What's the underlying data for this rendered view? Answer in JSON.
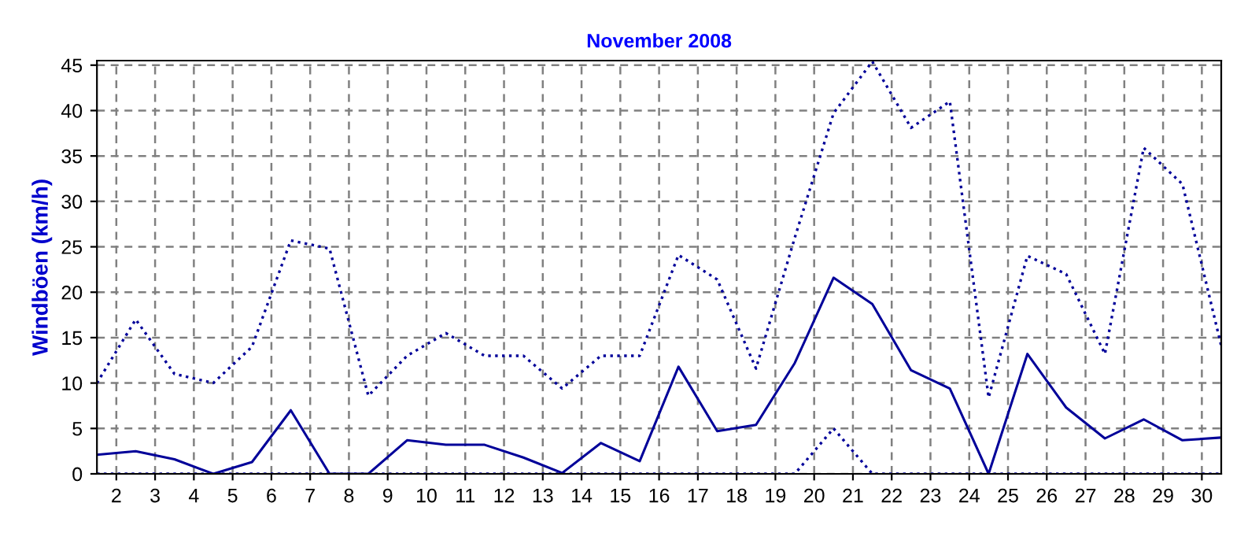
{
  "chart_data": {
    "type": "line",
    "title": "November 2008",
    "ylabel": "Windböen (km/h)",
    "x": [
      1.5,
      2.5,
      3.5,
      4.5,
      5.5,
      6.5,
      7.5,
      8.5,
      9.5,
      10.5,
      11.5,
      12.5,
      13.5,
      14.5,
      15.5,
      16.5,
      17.5,
      18.5,
      19.5,
      20.5,
      21.5,
      22.5,
      23.5,
      24.5,
      25.5,
      26.5,
      27.5,
      28.5,
      29.5,
      30.5
    ],
    "series": [
      {
        "color": "#000099",
        "line_style": "dotted",
        "values": [
          10,
          17,
          11,
          10,
          14,
          25.7,
          24.8,
          8.6,
          13,
          15.5,
          13,
          13,
          9.4,
          13,
          13,
          24.1,
          21.4,
          11.6,
          26,
          39.7,
          45.4,
          38.1,
          41,
          8.4,
          24,
          22,
          13.2,
          35.9,
          31.9,
          14.1
        ]
      },
      {
        "color": "#000099",
        "line_style": "solid",
        "values": [
          2.1,
          2.5,
          1.6,
          0,
          1.3,
          7,
          0,
          0,
          3.7,
          3.2,
          3.2,
          1.8,
          0.1,
          3.4,
          1.4,
          11.8,
          4.7,
          5.4,
          12.2,
          21.6,
          18.7,
          11.4,
          9.4,
          0,
          13.2,
          7.3,
          3.9,
          6,
          3.7,
          4
        ]
      },
      {
        "color": "#000099",
        "line_style": "dotted",
        "values": [
          0,
          0,
          0,
          0,
          0,
          0,
          0,
          0,
          0,
          0,
          0,
          0,
          0,
          0,
          0,
          0,
          0,
          0,
          0,
          5,
          0,
          0,
          0,
          0,
          0,
          0,
          0,
          0,
          0,
          0
        ]
      }
    ],
    "xlim": [
      1.5,
      30.5
    ],
    "xticks": [
      2,
      3,
      4,
      5,
      6,
      7,
      8,
      9,
      10,
      11,
      12,
      13,
      14,
      15,
      16,
      17,
      18,
      19,
      20,
      21,
      22,
      23,
      24,
      25,
      26,
      27,
      28,
      29,
      30
    ],
    "ylim": [
      0,
      45.5
    ],
    "yticks": [
      0,
      5,
      10,
      15,
      20,
      25,
      30,
      35,
      40,
      45
    ],
    "grid": true,
    "marker": "none"
  }
}
